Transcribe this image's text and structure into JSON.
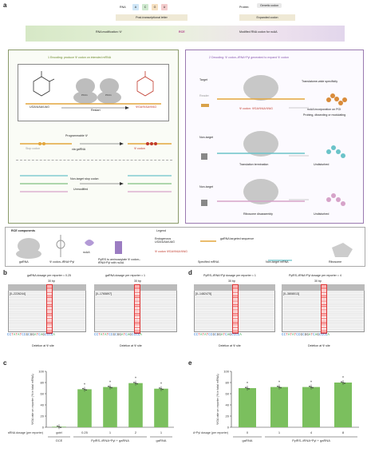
{
  "panel_a": {
    "letter": "a",
    "rna_label": "RNA",
    "nucleotides": [
      "A",
      "C",
      "G",
      "U"
    ],
    "protein_label": "Protein:",
    "genetic_codon": "Genetic codon",
    "post_transcriptional": "Post-transcriptional letter",
    "expanded_codon": "Expanded codon",
    "rna_modification": "RNA modification: Ψ",
    "rce": "RCE",
    "modified_codon": "Modified RNA codon for ncAA",
    "encoding_title": "1  Encoding: produce Ψ codon on intended mRNA",
    "decoding_title": "2  Decoding: Ψ codon–tRNA^Pyl generated to expand Ψ codon",
    "uridine_codons": "UGA/UAA/UAG",
    "pseudo_codons": "ΨGA/ΨAA/ΨAG",
    "restart": "Restart",
    "programmable": "Programmable Ψ",
    "via_garna": "via gaRNA",
    "stop_codon": "Stop codon",
    "psi_codon": "Ψ codon",
    "non_target_stop": "Non-target stop codon",
    "unmodified": "Unmodified",
    "target": "Target",
    "non_target_1": "Non-target",
    "non_target_2": "Non-target",
    "reader": "Reader",
    "psi_codon_trna": "Ψ codon: ΨGA/ΨAA/ΨAG",
    "translatome": "Translatome-wide specificity",
    "ncaa_incorp": "ncAA incorporation on POI",
    "probing": "Probing, dissecting or modulating",
    "translation_termination": "Translation termination",
    "ribosome_disassembly": "Ribosome disassembly",
    "undisturbed_1": "Undisturbed",
    "undisturbed_2": "Undisturbed",
    "rce_components": "RCE components",
    "legend": "Legend",
    "garna": "gaRNA",
    "psi_trna": "Ψ codon–tRNA^Pyl",
    "ncaa": "ncAA",
    "pyrs": "PylRS to aminoacylate Ψ codon–tRNA^Pyl with ncAA",
    "endogenous": "Endogenous UGA/UAA/UAG",
    "psi_codon_leg": "Ψ codon ΨGA/ΨAA/ΨAG",
    "garna_target": "gaRNA targeted sequence",
    "specified_mrna": "Specified mRNA",
    "non_target_mrna": "Non-target mRNA",
    "ribosome": "Ribosome"
  },
  "panel_b": {
    "letter": "b",
    "left": {
      "title": "gaRNA dosage per reporter = 0.25",
      "span": "30 bp",
      "id": "[0–2226244]",
      "seq": "CCTATATCCGCGGATCAGCCCCA",
      "note": "Deletion at Ψ site"
    },
    "right": {
      "title": "gaRNA dosage per reporter = 1",
      "span": "30 bp",
      "id": "[0–1765897]",
      "seq": "CCTATATCCGCGGATCAGCCCCA",
      "note": "Deletion at Ψ site"
    }
  },
  "panel_d": {
    "letter": "d",
    "left": {
      "title": "PylRS–tRNA^Pyl dosage per reporter = 1",
      "span": "30 bp",
      "id": "[0–1482475]",
      "seq": "CCTATATCCGCGGATCAGCCCCA",
      "note": "Deletion at Ψ site"
    },
    "right": {
      "title": "PylRS–tRNA^Pyl dosage per reporter = 4",
      "span": "30 bp",
      "id": "[0–3808013]",
      "seq": "CCTATATCCGCGGATCAGCCCCA",
      "note": "Deletion at Ψ site"
    }
  },
  "chart_data": [
    {
      "panel": "c",
      "type": "bar",
      "ylabel": "ΨGA rate on reporter (% in total mRNA)",
      "ylim": [
        0,
        100
      ],
      "yticks": [
        0,
        20,
        40,
        60,
        80,
        100
      ],
      "dosage_label": "gaRNA dosage (per reporter)",
      "categories": [
        "gctrl",
        "0.25",
        "1",
        "2",
        "1"
      ],
      "groups": [
        "GCE",
        "PylRS–tRNA^Pyl + gaRNA",
        "gaRNA"
      ],
      "values": [
        1,
        68,
        72,
        79,
        69
      ],
      "significance": [
        "",
        "*",
        "*",
        "*",
        "*"
      ]
    },
    {
      "panel": "e",
      "type": "bar",
      "ylabel": "ΨGA rate on reporter (% in total mRNA)",
      "ylim": [
        0,
        100
      ],
      "yticks": [
        0,
        20,
        40,
        60,
        80,
        100
      ],
      "dosage_label": "PylRS–tRNA^Pyl dosage (per reporter)",
      "categories": [
        "0",
        "1",
        "4",
        "8"
      ],
      "groups": [
        "gaRNA",
        "PylRS–tRNA^Pyl + gaRNA"
      ],
      "values": [
        70,
        72,
        72,
        80
      ],
      "significance": [
        "*",
        "*",
        "*",
        "*"
      ]
    }
  ]
}
